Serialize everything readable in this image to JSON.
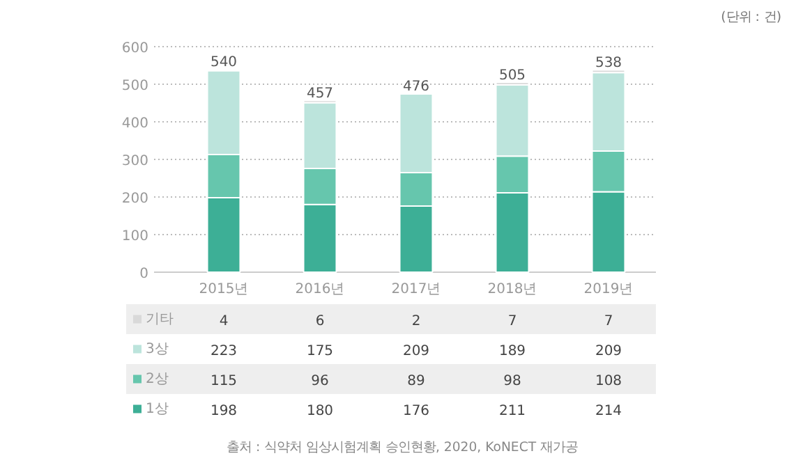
{
  "chart_data": {
    "type": "bar",
    "stacked": true,
    "categories": [
      "2015년",
      "2016년",
      "2017년",
      "2018년",
      "2019년"
    ],
    "series": [
      {
        "name": "1상",
        "color": "#3daf96",
        "values": [
          198,
          180,
          176,
          211,
          214
        ]
      },
      {
        "name": "2상",
        "color": "#66c6ad",
        "values": [
          115,
          96,
          89,
          98,
          108
        ]
      },
      {
        "name": "3상",
        "color": "#bce4dc",
        "values": [
          223,
          175,
          209,
          189,
          209
        ]
      },
      {
        "name": "기타",
        "color": "#d9d9d9",
        "values": [
          4,
          6,
          2,
          7,
          7
        ]
      }
    ],
    "totals": [
      "540",
      "457",
      "476",
      "505",
      "538"
    ],
    "ylim": [
      0,
      600
    ],
    "yticks": [
      0,
      100,
      200,
      300,
      400,
      500,
      600
    ],
    "grid": "y",
    "data_labels": true,
    "legend": "bottom",
    "annotations": [
      "(단위 : 건)",
      "출처 : 식약처 임상시험계획 승인현황, 2020, KoNECT 재가공"
    ]
  }
}
